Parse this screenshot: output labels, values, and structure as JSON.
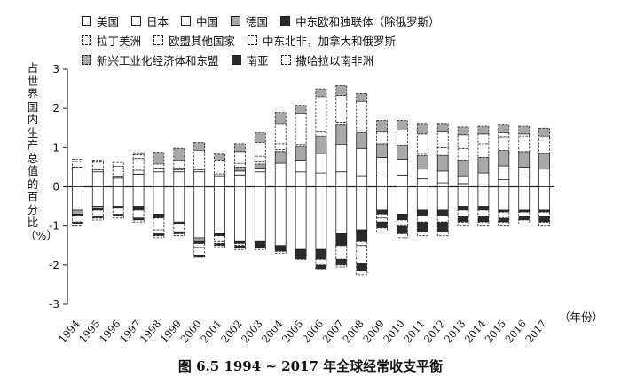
{
  "caption": "图 6.5    1994 ~ 2017 年全球经常收支平衡",
  "chart_data": {
    "type": "bar",
    "stacked": true,
    "ylabel": "占世界国内生产总值的百分比（%）",
    "xlabel": "（年份）",
    "ylim": [
      -3,
      3
    ],
    "yticks": [
      "-3",
      "-2",
      "-1",
      "0",
      "1",
      "2",
      "3"
    ],
    "categories": [
      "1994",
      "1995",
      "1996",
      "1997",
      "1998",
      "1999",
      "2000",
      "2001",
      "2002",
      "2003",
      "2004",
      "2005",
      "2006",
      "2007",
      "2008",
      "2009",
      "2010",
      "2011",
      "2012",
      "2013",
      "2014",
      "2015",
      "2016",
      "2017"
    ],
    "series": [
      {
        "name": "美国",
        "color": "#ffffff",
        "pattern": "solid",
        "values": [
          -0.6,
          -0.5,
          -0.5,
          -0.5,
          -0.7,
          -0.9,
          -1.3,
          -1.2,
          -1.4,
          -1.4,
          -1.5,
          -1.6,
          -1.6,
          -1.2,
          -1.1,
          -0.6,
          -0.7,
          -0.6,
          -0.6,
          -0.5,
          -0.5,
          -0.6,
          -0.6,
          -0.6
        ]
      },
      {
        "name": "日本",
        "color": "#ffffff",
        "pattern": "solid",
        "values": [
          0.45,
          0.38,
          0.22,
          0.32,
          0.38,
          0.38,
          0.38,
          0.28,
          0.3,
          0.38,
          0.45,
          0.38,
          0.35,
          0.38,
          0.28,
          0.25,
          0.3,
          0.2,
          0.1,
          0.08,
          0.05,
          0.18,
          0.25,
          0.25
        ]
      },
      {
        "name": "中国",
        "color": "#ffffff",
        "pattern": "solid",
        "values": [
          0.05,
          0.05,
          0.05,
          0.1,
          0.1,
          0.05,
          0.05,
          0.05,
          0.1,
          0.1,
          0.15,
          0.3,
          0.5,
          0.7,
          0.7,
          0.5,
          0.4,
          0.25,
          0.3,
          0.2,
          0.3,
          0.35,
          0.25,
          0.2
        ]
      },
      {
        "name": "德国",
        "color": "#a8a8a8",
        "pattern": "solid",
        "values": [
          -0.1,
          -0.05,
          0,
          0,
          0,
          0,
          -0.1,
          0,
          0.1,
          0.1,
          0.3,
          0.35,
          0.45,
          0.5,
          0.4,
          0.35,
          0.35,
          0.35,
          0.4,
          0.4,
          0.4,
          0.4,
          0.4,
          0.4
        ]
      },
      {
        "name": "中东欧和独联体（除俄罗斯）",
        "color": "#2a2a2a",
        "pattern": "solid",
        "values": [
          -0.05,
          -0.05,
          -0.05,
          -0.1,
          -0.1,
          -0.05,
          -0.05,
          -0.05,
          -0.05,
          -0.1,
          -0.1,
          -0.15,
          -0.25,
          -0.3,
          -0.3,
          -0.1,
          -0.15,
          -0.15,
          -0.15,
          -0.1,
          -0.1,
          -0.05,
          -0.05,
          -0.05
        ]
      },
      {
        "name": "拉丁美洲",
        "color": "#ffffff",
        "pattern": "dashed",
        "values": [
          -0.15,
          -0.15,
          -0.15,
          -0.2,
          -0.3,
          -0.2,
          -0.1,
          -0.15,
          -0.05,
          0.05,
          0.05,
          0.05,
          0.1,
          0.05,
          -0.1,
          -0.1,
          -0.1,
          -0.15,
          -0.15,
          -0.15,
          -0.15,
          -0.15,
          -0.1,
          -0.1
        ]
      },
      {
        "name": "欧盟其他国家",
        "color": "#ffffff",
        "pattern": "dashed",
        "values": [
          0.15,
          0.2,
          0.25,
          0.3,
          0.1,
          0.05,
          -0.2,
          -0.05,
          0.1,
          0.15,
          0.15,
          0,
          -0.15,
          -0.35,
          -0.45,
          -0.1,
          -0.05,
          0.05,
          0.2,
          0.3,
          0.35,
          0.35,
          0.4,
          0.4
        ]
      },
      {
        "name": "中东北非，加拿大和俄罗斯",
        "color": "#ffffff",
        "pattern": "dashed",
        "values": [
          0.05,
          0.05,
          0.1,
          0.1,
          -0.1,
          0.2,
          0.5,
          0.35,
          0.3,
          0.35,
          0.5,
          0.8,
          0.9,
          0.7,
          0.8,
          0.3,
          0.4,
          0.5,
          0.4,
          0.35,
          0.25,
          0.1,
          0.05,
          0.05
        ]
      },
      {
        "name": "新兴工业化经济体和东盟",
        "color": "#a8a8a8",
        "pattern": "dashed",
        "values": [
          0,
          0,
          0,
          0.05,
          0.3,
          0.3,
          0.2,
          0.15,
          0.2,
          0.25,
          0.3,
          0.2,
          0.2,
          0.25,
          0.2,
          0.3,
          0.25,
          0.25,
          0.2,
          0.2,
          0.2,
          0.2,
          0.2,
          0.2
        ]
      },
      {
        "name": "南亚",
        "color": "#2a2a2a",
        "pattern": "dashed",
        "values": [
          -0.05,
          -0.05,
          -0.05,
          -0.05,
          -0.05,
          -0.05,
          -0.05,
          -0.05,
          -0.05,
          -0.05,
          -0.05,
          -0.1,
          -0.1,
          -0.15,
          -0.2,
          -0.15,
          -0.2,
          -0.25,
          -0.25,
          -0.15,
          -0.15,
          -0.1,
          -0.1,
          -0.15
        ]
      },
      {
        "name": "撒哈拉以南非洲",
        "color": "#ffffff",
        "pattern": "dashed",
        "values": [
          -0.05,
          -0.05,
          -0.05,
          -0.05,
          -0.05,
          -0.05,
          0,
          -0.05,
          -0.05,
          -0.05,
          -0.05,
          0,
          0,
          -0.05,
          -0.1,
          -0.1,
          -0.1,
          -0.1,
          -0.1,
          -0.1,
          -0.1,
          -0.1,
          -0.1,
          -0.1
        ]
      }
    ]
  }
}
